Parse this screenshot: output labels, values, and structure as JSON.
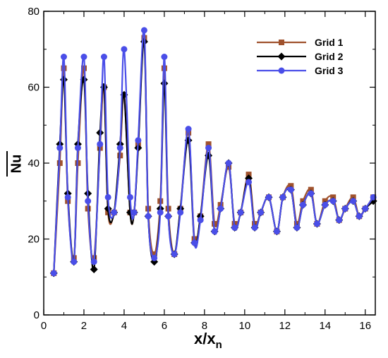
{
  "chart_data": {
    "type": "line",
    "xlabel": "x/x",
    "xlabel_sub": "n",
    "ylabel": "Nu",
    "xlim": [
      0,
      16.5
    ],
    "ylim": [
      0,
      80
    ],
    "xticks": [
      0,
      2,
      4,
      6,
      8,
      10,
      12,
      14,
      16
    ],
    "yticks": [
      0,
      20,
      40,
      60,
      80
    ],
    "grid": false,
    "legend_position": "top-right",
    "x": [
      0.5,
      0.8,
      1.0,
      1.2,
      1.5,
      1.7,
      2.0,
      2.2,
      2.5,
      2.8,
      3.0,
      3.2,
      3.5,
      3.8,
      4.0,
      4.3,
      4.5,
      4.7,
      5.0,
      5.2,
      5.5,
      5.8,
      6.0,
      6.2,
      6.5,
      6.8,
      7.2,
      7.5,
      7.8,
      8.2,
      8.5,
      8.8,
      9.2,
      9.5,
      9.8,
      10.2,
      10.5,
      10.8,
      11.2,
      11.6,
      11.9,
      12.3,
      12.6,
      12.9,
      13.3,
      13.6,
      14.0,
      14.4,
      14.7,
      15.0,
      15.4,
      15.7,
      16.0,
      16.4
    ],
    "series": [
      {
        "name": "Grid 1",
        "color": "#a0522d",
        "marker": "square",
        "values": [
          11,
          40,
          65,
          30,
          15,
          40,
          65,
          28,
          15,
          44,
          60,
          27,
          27,
          42,
          58,
          27,
          27,
          45,
          73,
          28,
          16,
          30,
          65,
          28,
          16,
          28,
          48,
          20,
          26,
          45,
          24,
          29,
          39,
          24,
          27,
          37,
          24,
          27,
          31,
          22,
          31,
          34,
          24,
          30,
          33,
          24,
          30,
          31,
          25,
          28,
          31,
          26,
          28,
          31
        ]
      },
      {
        "name": "Grid 2",
        "color": "#000000",
        "marker": "diamond",
        "values": [
          11,
          45,
          62,
          32,
          14,
          45,
          62,
          32,
          12,
          48,
          60,
          28,
          27,
          45,
          58,
          27,
          27,
          44,
          72,
          26,
          14,
          28,
          61,
          26,
          16,
          28,
          46,
          19,
          26,
          42,
          22,
          28,
          40,
          23,
          27,
          36,
          23,
          27,
          31,
          22,
          31,
          33,
          23,
          29,
          32,
          24,
          29,
          30,
          25,
          28,
          30,
          26,
          28,
          30
        ]
      },
      {
        "name": "Grid 3",
        "color": "#4a4ee8",
        "marker": "circle",
        "values": [
          11,
          44,
          68,
          31,
          14,
          44,
          68,
          30,
          14,
          45,
          68,
          31,
          27,
          44,
          70,
          31,
          27,
          46,
          75,
          26,
          15,
          27,
          68,
          26,
          16,
          27,
          49,
          19,
          25,
          44,
          22,
          28,
          40,
          23,
          27,
          35,
          23,
          27,
          31,
          22,
          31,
          33,
          23,
          29,
          32,
          24,
          29,
          30,
          25,
          28,
          30,
          26,
          28,
          31
        ]
      }
    ]
  }
}
